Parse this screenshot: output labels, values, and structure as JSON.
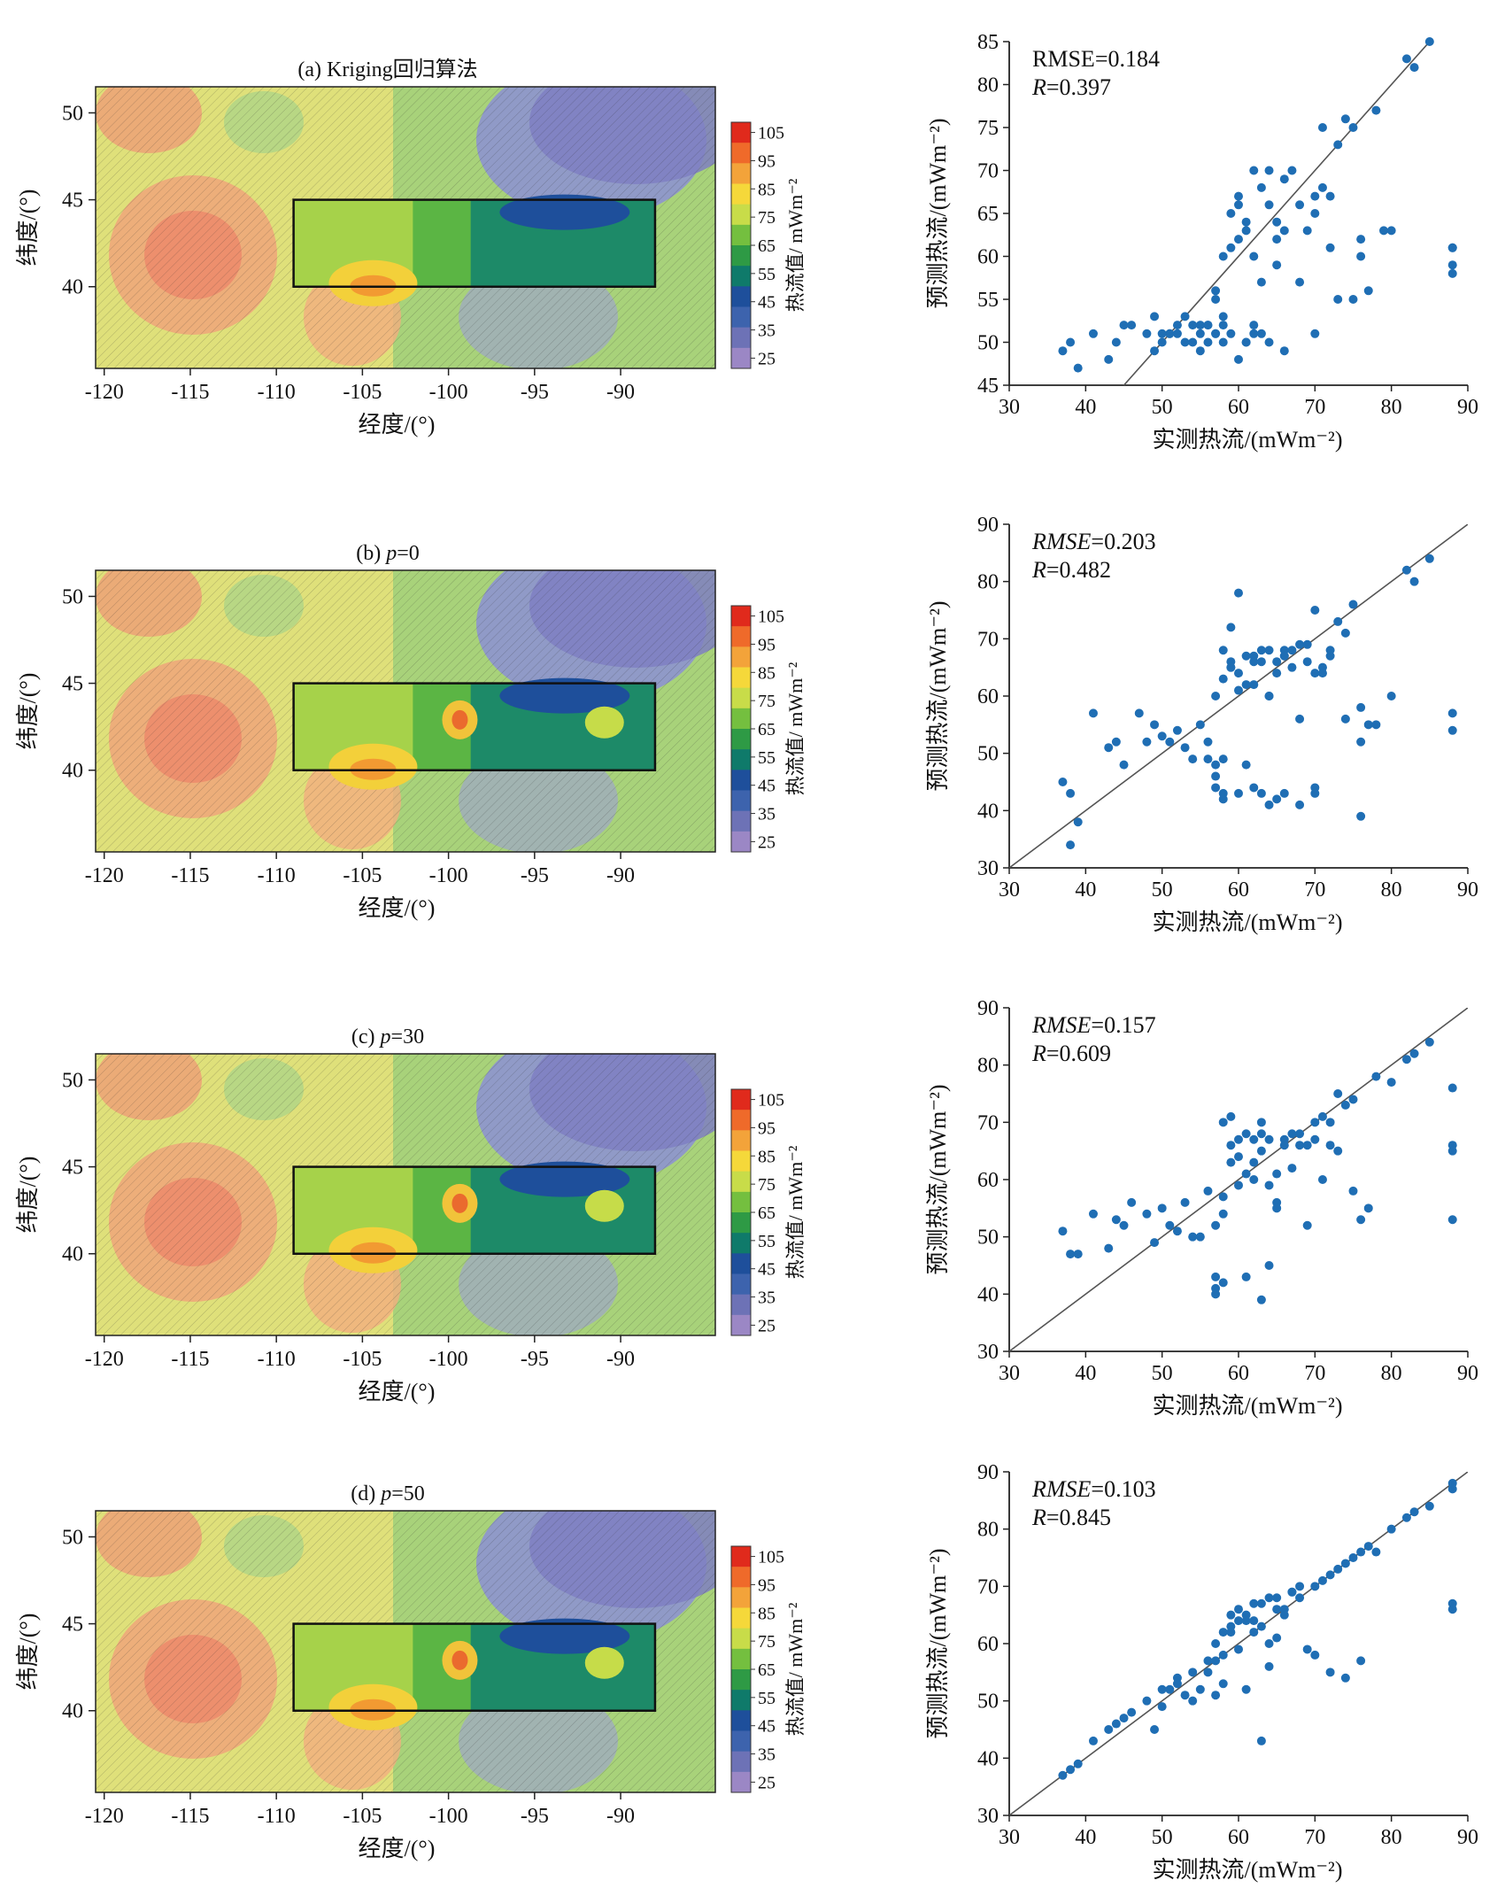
{
  "colorbar": {
    "label": "热流值/ mWm⁻²",
    "ticks": [
      "105",
      "95",
      "85",
      "75",
      "65",
      "55",
      "45",
      "35",
      "25"
    ],
    "colors": [
      "#e02a1c",
      "#ef6a2a",
      "#f3a33a",
      "#f5d83a",
      "#c8dc49",
      "#74bf3f",
      "#2e9a45",
      "#0f7a6a",
      "#1e4f9b",
      "#3d63ad",
      "#6d72b6",
      "#9b87c5"
    ]
  },
  "map_axes": {
    "xlabel": "经度/(°)",
    "ylabel": "纬度/(°)",
    "xticks": [
      "-120",
      "-115",
      "-110",
      "-105",
      "-100",
      "-95",
      "-90"
    ],
    "yticks": [
      "50",
      "45",
      "40"
    ],
    "xlim": [
      -120.5,
      -84.5
    ],
    "ylim": [
      35.3,
      51.5
    ],
    "study_area_box": {
      "lon": [
        -109,
        -88
      ],
      "lat": [
        40,
        45
      ]
    }
  },
  "maps": [
    {
      "title_prefix": "(a) ",
      "title_text": "Kriging回归算法",
      "title_var": ""
    },
    {
      "title_prefix": "(b) ",
      "title_text": "=0",
      "title_var": "p"
    },
    {
      "title_prefix": "(c) ",
      "title_text": "=30",
      "title_var": "p"
    },
    {
      "title_prefix": "(d) ",
      "title_text": "=50",
      "title_var": "p"
    }
  ],
  "chart_data": [
    {
      "type": "scatter",
      "xlabel": "实测热流/(mWm⁻²)",
      "ylabel": "预测热流/(mWm⁻²)",
      "xlim": [
        30,
        90
      ],
      "ylim": [
        45,
        85
      ],
      "xticks": [
        "30",
        "40",
        "50",
        "60",
        "70",
        "80",
        "90"
      ],
      "yticks": [
        "45",
        "50",
        "55",
        "60",
        "65",
        "70",
        "75",
        "80",
        "85"
      ],
      "rmse_label": "RMSE",
      "rmse_italic": false,
      "rmse_value": "=0.184",
      "r_label": "R",
      "r_value": "=0.397",
      "x": [
        37,
        38,
        39,
        41,
        43,
        44,
        45,
        46,
        48,
        49,
        50,
        51,
        52,
        53,
        54,
        55,
        56,
        57,
        57,
        57,
        58,
        58,
        59,
        59,
        60,
        60,
        61,
        61,
        62,
        62,
        63,
        63,
        64,
        64,
        65,
        65,
        66,
        67,
        68,
        69,
        70,
        70,
        71,
        71,
        72,
        73,
        74,
        75,
        76,
        76,
        77,
        78,
        79,
        80,
        82,
        83,
        85,
        88,
        88,
        49,
        51,
        53,
        55,
        56,
        58,
        60,
        62,
        64,
        66,
        52,
        54,
        56,
        57,
        59,
        61,
        63,
        50,
        55,
        58,
        61,
        62,
        65,
        68,
        70,
        73,
        75,
        60,
        66,
        72,
        88,
        88
      ],
      "y": [
        49,
        50,
        47,
        51,
        48,
        50,
        52,
        52,
        51,
        49,
        50,
        51,
        52,
        53,
        50,
        51,
        52,
        56,
        55,
        51,
        53,
        60,
        61,
        65,
        66,
        62,
        64,
        63,
        70,
        60,
        68,
        57,
        66,
        70,
        59,
        62,
        63,
        70,
        66,
        63,
        51,
        65,
        68,
        75,
        67,
        73,
        76,
        55,
        60,
        62,
        56,
        77,
        63,
        63,
        83,
        82,
        85,
        61,
        58,
        53,
        51,
        50,
        49,
        52,
        50,
        48,
        52,
        50,
        49,
        51,
        52,
        50,
        51,
        51,
        50,
        51,
        51,
        52,
        52,
        50,
        51,
        64,
        57,
        67,
        55,
        75,
        67,
        69,
        61,
        61,
        59
      ],
      "x_axis_min": 30,
      "x_axis_max": 90
    },
    {
      "type": "scatter",
      "xlabel": "实测热流/(mWm⁻²)",
      "ylabel": "预测热流/(mWm⁻²)",
      "xlim": [
        30,
        90
      ],
      "ylim": [
        30,
        90
      ],
      "xticks": [
        "30",
        "40",
        "50",
        "60",
        "70",
        "80",
        "90"
      ],
      "yticks": [
        "30",
        "40",
        "50",
        "60",
        "70",
        "80",
        "90"
      ],
      "rmse_label": "RMSE",
      "rmse_italic": true,
      "rmse_value": "=0.203",
      "r_label": "R",
      "r_value": "=0.482",
      "x": [
        37,
        38,
        38,
        39,
        41,
        43,
        44,
        45,
        47,
        48,
        49,
        50,
        51,
        52,
        53,
        54,
        55,
        56,
        57,
        57,
        58,
        58,
        58,
        59,
        59,
        59,
        60,
        60,
        60,
        61,
        61,
        62,
        62,
        63,
        63,
        64,
        64,
        65,
        65,
        66,
        66,
        67,
        68,
        69,
        70,
        70,
        71,
        72,
        73,
        74,
        75,
        76,
        76,
        77,
        78,
        80,
        82,
        83,
        85,
        88,
        88,
        57,
        58,
        59,
        60,
        61,
        62,
        63,
        64,
        65,
        66,
        67,
        68,
        69,
        70,
        71,
        72,
        56,
        57,
        58,
        62,
        64,
        66,
        68,
        70,
        74,
        76
      ],
      "y": [
        45,
        34,
        43,
        38,
        57,
        51,
        52,
        48,
        57,
        52,
        55,
        53,
        52,
        54,
        51,
        49,
        55,
        52,
        48,
        44,
        43,
        49,
        68,
        72,
        66,
        65,
        43,
        61,
        78,
        67,
        48,
        67,
        62,
        43,
        66,
        68,
        60,
        42,
        66,
        67,
        68,
        65,
        56,
        69,
        44,
        75,
        64,
        67,
        73,
        71,
        76,
        58,
        52,
        55,
        55,
        60,
        82,
        80,
        84,
        57,
        54,
        60,
        63,
        65,
        64,
        62,
        66,
        68,
        60,
        64,
        67,
        68,
        69,
        66,
        64,
        65,
        68,
        49,
        46,
        42,
        44,
        41,
        43,
        41,
        43,
        56,
        39
      ],
      "x_axis_min": 30,
      "x_axis_max": 90
    },
    {
      "type": "scatter",
      "xlabel": "实测热流/(mWm⁻²)",
      "ylabel": "预测热流/(mWm⁻²)",
      "xlim": [
        30,
        90
      ],
      "ylim": [
        30,
        90
      ],
      "xticks": [
        "30",
        "40",
        "50",
        "60",
        "70",
        "80",
        "90"
      ],
      "yticks": [
        "30",
        "40",
        "50",
        "60",
        "70",
        "80",
        "90"
      ],
      "rmse_label": "RMSE",
      "rmse_italic": true,
      "rmse_value": "=0.157",
      "r_label": "R",
      "r_value": "=0.609",
      "x": [
        37,
        38,
        39,
        41,
        43,
        44,
        45,
        46,
        48,
        49,
        50,
        51,
        52,
        53,
        54,
        55,
        56,
        57,
        57,
        58,
        58,
        59,
        59,
        60,
        60,
        61,
        61,
        62,
        62,
        63,
        63,
        64,
        64,
        65,
        65,
        66,
        67,
        68,
        69,
        70,
        71,
        72,
        73,
        74,
        75,
        76,
        77,
        78,
        80,
        82,
        83,
        85,
        88,
        88,
        88,
        88,
        57,
        58,
        59,
        61,
        63,
        65,
        67,
        69,
        71,
        73,
        75,
        57,
        58,
        60,
        62,
        63,
        64,
        66,
        68,
        70,
        72
      ],
      "y": [
        51,
        47,
        47,
        54,
        48,
        53,
        52,
        56,
        54,
        49,
        55,
        52,
        51,
        56,
        50,
        50,
        58,
        41,
        40,
        70,
        42,
        71,
        66,
        59,
        67,
        61,
        43,
        63,
        60,
        39,
        68,
        45,
        67,
        56,
        61,
        67,
        68,
        66,
        52,
        70,
        71,
        70,
        75,
        73,
        74,
        53,
        55,
        78,
        77,
        81,
        82,
        84,
        76,
        66,
        65,
        53,
        52,
        57,
        63,
        68,
        65,
        55,
        62,
        66,
        60,
        65,
        58,
        43,
        54,
        64,
        67,
        70,
        59,
        66,
        68,
        67,
        66
      ],
      "x_axis_min": 30,
      "x_axis_max": 90
    },
    {
      "type": "scatter",
      "xlabel": "实测热流/(mWm⁻²)",
      "ylabel": "预测热流/(mWm⁻²)",
      "xlim": [
        30,
        90
      ],
      "ylim": [
        30,
        90
      ],
      "xticks": [
        "30",
        "40",
        "50",
        "60",
        "70",
        "80",
        "90"
      ],
      "yticks": [
        "30",
        "40",
        "50",
        "60",
        "70",
        "80",
        "90"
      ],
      "rmse_label": "RMSE",
      "rmse_italic": true,
      "rmse_value": "=0.103",
      "r_label": "R",
      "r_value": "=0.845",
      "x": [
        37,
        38,
        39,
        41,
        43,
        44,
        45,
        46,
        48,
        49,
        50,
        51,
        52,
        53,
        54,
        55,
        56,
        57,
        57,
        58,
        58,
        59,
        59,
        60,
        60,
        61,
        61,
        62,
        62,
        63,
        63,
        64,
        64,
        65,
        65,
        66,
        67,
        68,
        69,
        70,
        71,
        72,
        73,
        74,
        75,
        76,
        77,
        78,
        80,
        82,
        83,
        85,
        88,
        88,
        88,
        88,
        50,
        52,
        54,
        56,
        58,
        60,
        62,
        64,
        66,
        68,
        70,
        72,
        74,
        76,
        57,
        59,
        61,
        63,
        65,
        67
      ],
      "y": [
        37,
        38,
        39,
        43,
        45,
        46,
        47,
        48,
        50,
        45,
        49,
        52,
        54,
        51,
        55,
        52,
        55,
        57,
        51,
        58,
        62,
        63,
        65,
        66,
        64,
        65,
        52,
        67,
        62,
        43,
        63,
        60,
        68,
        61,
        68,
        65,
        69,
        70,
        59,
        70,
        71,
        72,
        73,
        74,
        75,
        76,
        77,
        76,
        80,
        82,
        83,
        84,
        87,
        88,
        67,
        66,
        52,
        53,
        50,
        57,
        53,
        59,
        64,
        56,
        66,
        68,
        58,
        55,
        54,
        57,
        60,
        62,
        64,
        67,
        66,
        69
      ],
      "x_axis_min": 30,
      "x_axis_max": 90
    }
  ]
}
